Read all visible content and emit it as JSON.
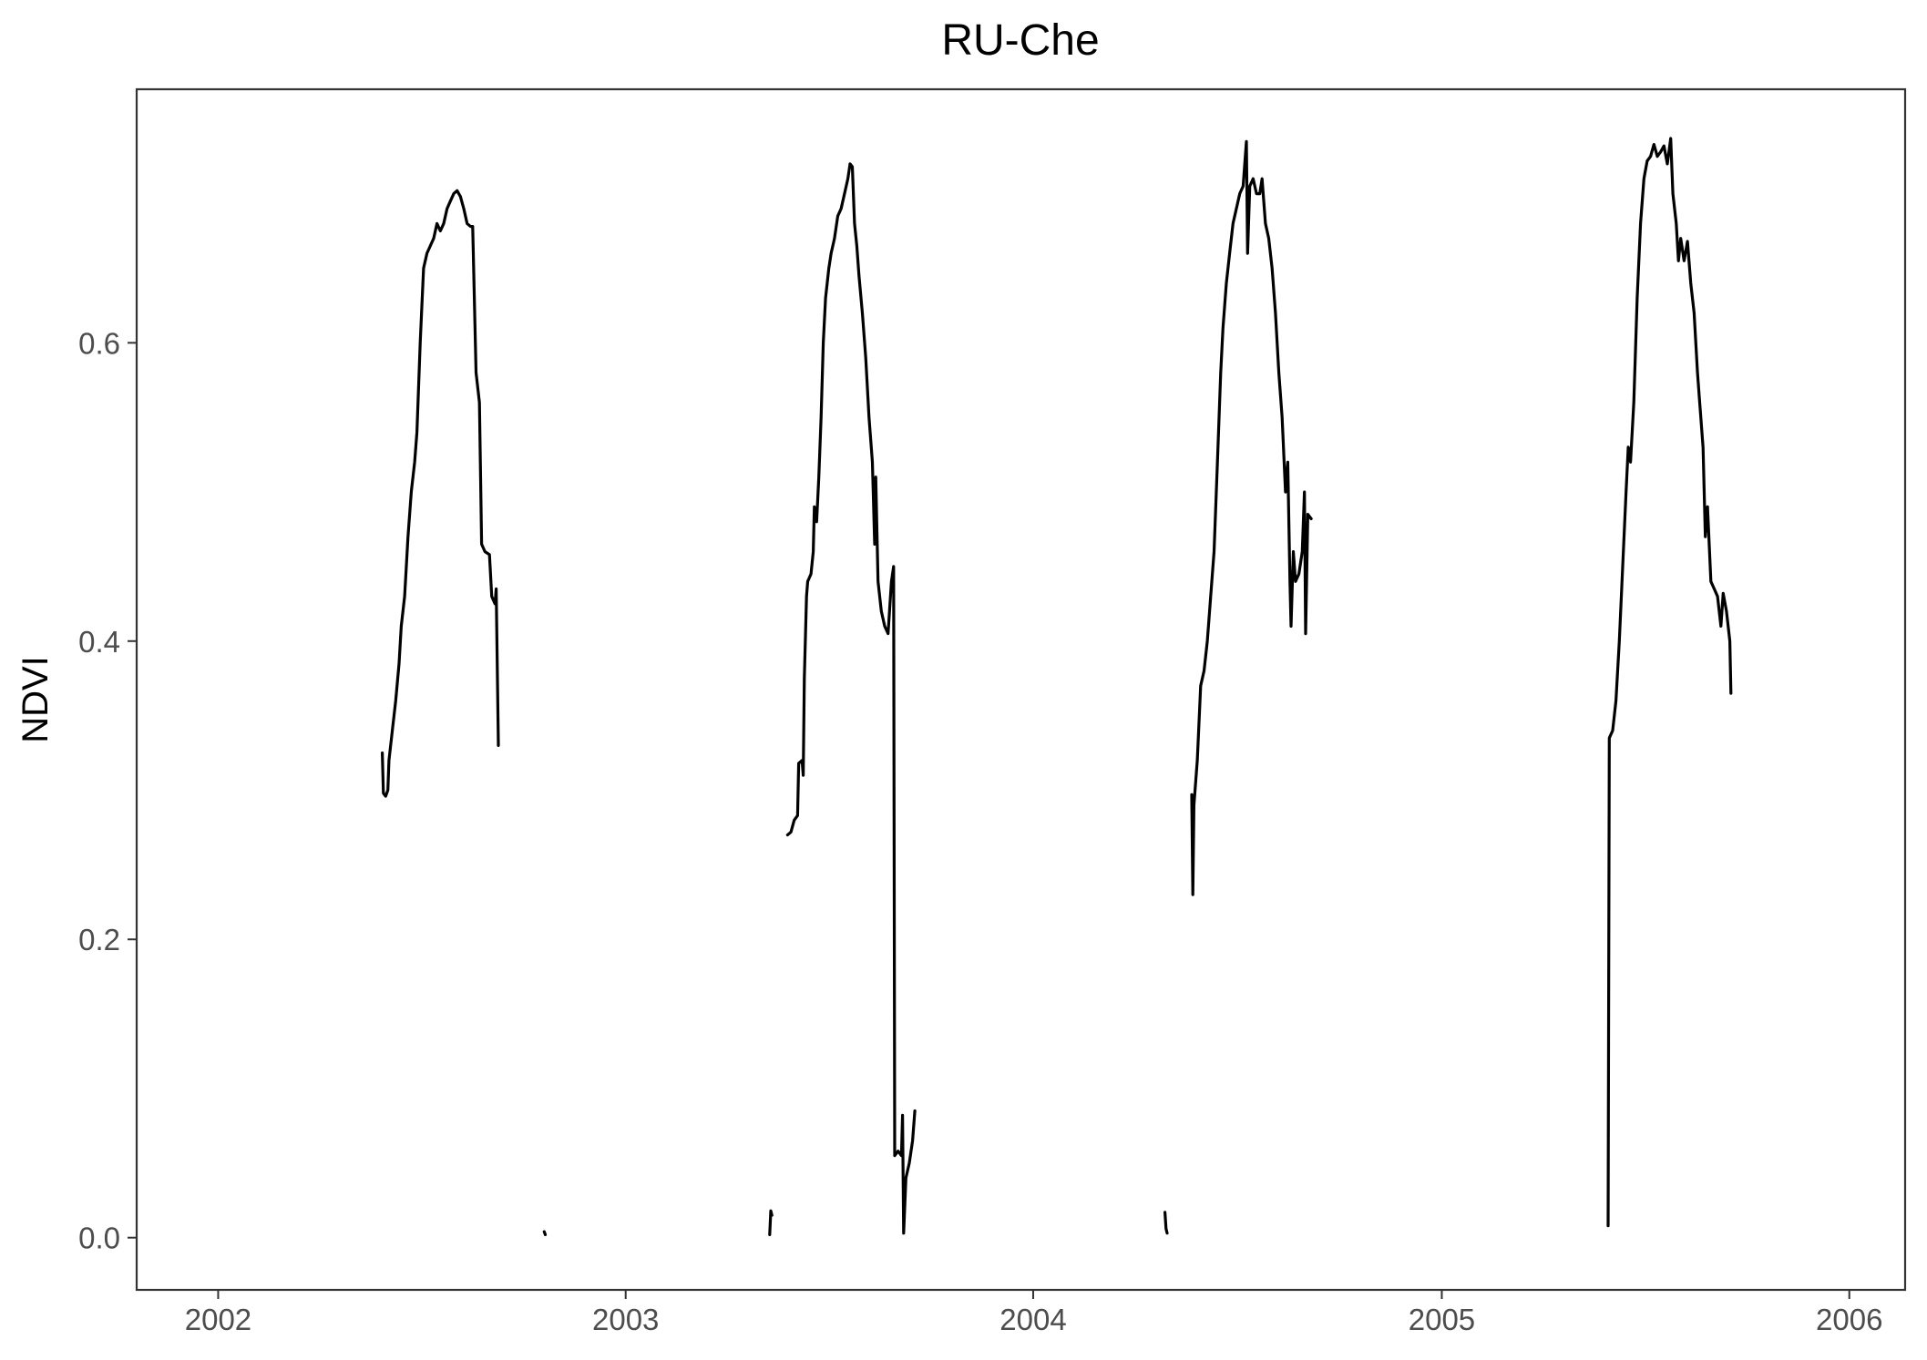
{
  "chart_data": {
    "type": "line",
    "title": "RU-Che",
    "xlabel": "",
    "ylabel": "NDVI",
    "xlim": [
      "2001-10-20",
      "2006-02-20"
    ],
    "ylim": [
      -0.035,
      0.77
    ],
    "x_ticks": [
      "2002-01-01",
      "2003-01-01",
      "2004-01-01",
      "2005-01-01",
      "2006-01-01"
    ],
    "x_tick_labels": [
      "2002",
      "2003",
      "2004",
      "2005",
      "2006"
    ],
    "y_ticks": [
      0.0,
      0.2,
      0.4,
      0.6
    ],
    "y_tick_labels": [
      "0.0",
      "0.2",
      "0.4",
      "0.6"
    ],
    "grid": false,
    "legend": "none",
    "colors": {
      "line": "#000000",
      "panel_border": "#333333",
      "tick_label": "#4d4d4d"
    },
    "series": [
      {
        "segments": [
          [
            [
              "2002-05-28",
              0.325
            ],
            [
              "2002-05-29",
              0.298
            ],
            [
              "2002-05-31",
              0.296
            ],
            [
              "2002-06-02",
              0.3
            ],
            [
              "2002-06-03",
              0.32
            ],
            [
              "2002-06-06",
              0.34
            ],
            [
              "2002-06-09",
              0.36
            ],
            [
              "2002-06-12",
              0.385
            ],
            [
              "2002-06-14",
              0.41
            ],
            [
              "2002-06-17",
              0.43
            ],
            [
              "2002-06-20",
              0.47
            ],
            [
              "2002-06-23",
              0.5
            ],
            [
              "2002-06-26",
              0.52
            ],
            [
              "2002-06-28",
              0.54
            ],
            [
              "2002-07-01",
              0.6
            ],
            [
              "2002-07-04",
              0.65
            ],
            [
              "2002-07-07",
              0.66
            ],
            [
              "2002-07-10",
              0.665
            ],
            [
              "2002-07-13",
              0.67
            ],
            [
              "2002-07-16",
              0.68
            ],
            [
              "2002-07-19",
              0.675
            ],
            [
              "2002-07-22",
              0.68
            ],
            [
              "2002-07-25",
              0.69
            ],
            [
              "2002-07-28",
              0.695
            ],
            [
              "2002-07-31",
              0.7
            ],
            [
              "2002-08-03",
              0.702
            ],
            [
              "2002-08-06",
              0.698
            ],
            [
              "2002-08-09",
              0.69
            ],
            [
              "2002-08-12",
              0.68
            ],
            [
              "2002-08-15",
              0.678
            ],
            [
              "2002-08-17",
              0.678
            ],
            [
              "2002-08-20",
              0.58
            ],
            [
              "2002-08-23",
              0.56
            ],
            [
              "2002-08-25",
              0.465
            ],
            [
              "2002-08-28",
              0.46
            ],
            [
              "2002-09-01",
              0.458
            ],
            [
              "2002-09-03",
              0.43
            ],
            [
              "2002-09-06",
              0.425
            ],
            [
              "2002-09-07",
              0.435
            ],
            [
              "2002-09-09",
              0.33
            ]
          ],
          [
            [
              "2002-10-20",
              0.004
            ],
            [
              "2002-10-21",
              0.002
            ]
          ],
          [
            [
              "2003-05-10",
              0.002
            ],
            [
              "2003-05-11",
              0.018
            ],
            [
              "2003-05-12",
              0.015
            ]
          ],
          [
            [
              "2003-05-26",
              0.27
            ],
            [
              "2003-05-29",
              0.272
            ],
            [
              "2003-06-01",
              0.28
            ],
            [
              "2003-06-04",
              0.283
            ],
            [
              "2003-06-05",
              0.318
            ],
            [
              "2003-06-08",
              0.32
            ],
            [
              "2003-06-09",
              0.31
            ],
            [
              "2003-06-10",
              0.375
            ],
            [
              "2003-06-12",
              0.43
            ],
            [
              "2003-06-13",
              0.44
            ],
            [
              "2003-06-16",
              0.445
            ],
            [
              "2003-06-18",
              0.46
            ],
            [
              "2003-06-19",
              0.49
            ],
            [
              "2003-06-21",
              0.48
            ],
            [
              "2003-06-23",
              0.51
            ],
            [
              "2003-06-25",
              0.55
            ],
            [
              "2003-06-27",
              0.6
            ],
            [
              "2003-06-29",
              0.63
            ],
            [
              "2003-07-02",
              0.65
            ],
            [
              "2003-07-04",
              0.66
            ],
            [
              "2003-07-07",
              0.67
            ],
            [
              "2003-07-10",
              0.685
            ],
            [
              "2003-07-13",
              0.69
            ],
            [
              "2003-07-16",
              0.7
            ],
            [
              "2003-07-19",
              0.71
            ],
            [
              "2003-07-21",
              0.72
            ],
            [
              "2003-07-23",
              0.718
            ],
            [
              "2003-07-25",
              0.68
            ],
            [
              "2003-07-27",
              0.665
            ],
            [
              "2003-07-29",
              0.645
            ],
            [
              "2003-08-01",
              0.62
            ],
            [
              "2003-08-04",
              0.59
            ],
            [
              "2003-08-07",
              0.55
            ],
            [
              "2003-08-10",
              0.52
            ],
            [
              "2003-08-12",
              0.465
            ],
            [
              "2003-08-13",
              0.51
            ],
            [
              "2003-08-15",
              0.44
            ],
            [
              "2003-08-18",
              0.42
            ],
            [
              "2003-08-21",
              0.41
            ],
            [
              "2003-08-24",
              0.405
            ],
            [
              "2003-08-27",
              0.44
            ],
            [
              "2003-08-29",
              0.45
            ],
            [
              "2003-08-30",
              0.055
            ],
            [
              "2003-09-02",
              0.058
            ],
            [
              "2003-09-05",
              0.055
            ],
            [
              "2003-09-06",
              0.082
            ],
            [
              "2003-09-07",
              0.003
            ],
            [
              "2003-09-09",
              0.04
            ],
            [
              "2003-09-12",
              0.05
            ],
            [
              "2003-09-15",
              0.065
            ],
            [
              "2003-09-17",
              0.085
            ]
          ],
          [
            [
              "2004-04-28",
              0.017
            ],
            [
              "2004-04-29",
              0.006
            ],
            [
              "2004-04-30",
              0.003
            ]
          ],
          [
            [
              "2004-05-22",
              0.297
            ],
            [
              "2004-05-23",
              0.23
            ],
            [
              "2004-05-24",
              0.29
            ],
            [
              "2004-05-27",
              0.32
            ],
            [
              "2004-05-30",
              0.37
            ],
            [
              "2004-06-02",
              0.38
            ],
            [
              "2004-06-05",
              0.4
            ],
            [
              "2004-06-08",
              0.43
            ],
            [
              "2004-06-11",
              0.46
            ],
            [
              "2004-06-14",
              0.52
            ],
            [
              "2004-06-17",
              0.58
            ],
            [
              "2004-06-19",
              0.61
            ],
            [
              "2004-06-22",
              0.64
            ],
            [
              "2004-06-25",
              0.66
            ],
            [
              "2004-06-28",
              0.68
            ],
            [
              "2004-07-01",
              0.69
            ],
            [
              "2004-07-04",
              0.7
            ],
            [
              "2004-07-07",
              0.705
            ],
            [
              "2004-07-10",
              0.735
            ],
            [
              "2004-07-11",
              0.66
            ],
            [
              "2004-07-13",
              0.705
            ],
            [
              "2004-07-16",
              0.71
            ],
            [
              "2004-07-19",
              0.7
            ],
            [
              "2004-07-22",
              0.7
            ],
            [
              "2004-07-24",
              0.71
            ],
            [
              "2004-07-27",
              0.68
            ],
            [
              "2004-07-30",
              0.67
            ],
            [
              "2004-08-02",
              0.65
            ],
            [
              "2004-08-05",
              0.62
            ],
            [
              "2004-08-08",
              0.58
            ],
            [
              "2004-08-11",
              0.55
            ],
            [
              "2004-08-14",
              0.5
            ],
            [
              "2004-08-16",
              0.52
            ],
            [
              "2004-08-18",
              0.44
            ],
            [
              "2004-08-19",
              0.41
            ],
            [
              "2004-08-21",
              0.46
            ],
            [
              "2004-08-23",
              0.44
            ],
            [
              "2004-08-26",
              0.445
            ],
            [
              "2004-08-29",
              0.46
            ],
            [
              "2004-08-31",
              0.5
            ],
            [
              "2004-09-01",
              0.405
            ],
            [
              "2004-09-03",
              0.485
            ],
            [
              "2004-09-06",
              0.482
            ]
          ],
          [
            [
              "2005-05-30",
              0.008
            ],
            [
              "2005-05-31",
              0.335
            ],
            [
              "2005-06-03",
              0.34
            ],
            [
              "2005-06-06",
              0.36
            ],
            [
              "2005-06-09",
              0.4
            ],
            [
              "2005-06-12",
              0.45
            ],
            [
              "2005-06-15",
              0.5
            ],
            [
              "2005-06-17",
              0.53
            ],
            [
              "2005-06-19",
              0.52
            ],
            [
              "2005-06-22",
              0.56
            ],
            [
              "2005-06-25",
              0.63
            ],
            [
              "2005-06-28",
              0.68
            ],
            [
              "2005-07-01",
              0.71
            ],
            [
              "2005-07-04",
              0.722
            ],
            [
              "2005-07-07",
              0.725
            ],
            [
              "2005-07-10",
              0.733
            ],
            [
              "2005-07-13",
              0.725
            ],
            [
              "2005-07-16",
              0.728
            ],
            [
              "2005-07-19",
              0.732
            ],
            [
              "2005-07-22",
              0.72
            ],
            [
              "2005-07-25",
              0.737
            ],
            [
              "2005-07-27",
              0.7
            ],
            [
              "2005-07-30",
              0.68
            ],
            [
              "2005-08-01",
              0.655
            ],
            [
              "2005-08-03",
              0.67
            ],
            [
              "2005-08-06",
              0.655
            ],
            [
              "2005-08-09",
              0.668
            ],
            [
              "2005-08-12",
              0.64
            ],
            [
              "2005-08-15",
              0.62
            ],
            [
              "2005-08-18",
              0.58
            ],
            [
              "2005-08-20",
              0.56
            ],
            [
              "2005-08-23",
              0.53
            ],
            [
              "2005-08-25",
              0.47
            ],
            [
              "2005-08-27",
              0.49
            ],
            [
              "2005-08-30",
              0.44
            ],
            [
              "2005-09-02",
              0.435
            ],
            [
              "2005-09-05",
              0.43
            ],
            [
              "2005-09-08",
              0.41
            ],
            [
              "2005-09-10",
              0.432
            ],
            [
              "2005-09-13",
              0.42
            ],
            [
              "2005-09-16",
              0.4
            ],
            [
              "2005-09-17",
              0.365
            ]
          ]
        ]
      }
    ]
  }
}
